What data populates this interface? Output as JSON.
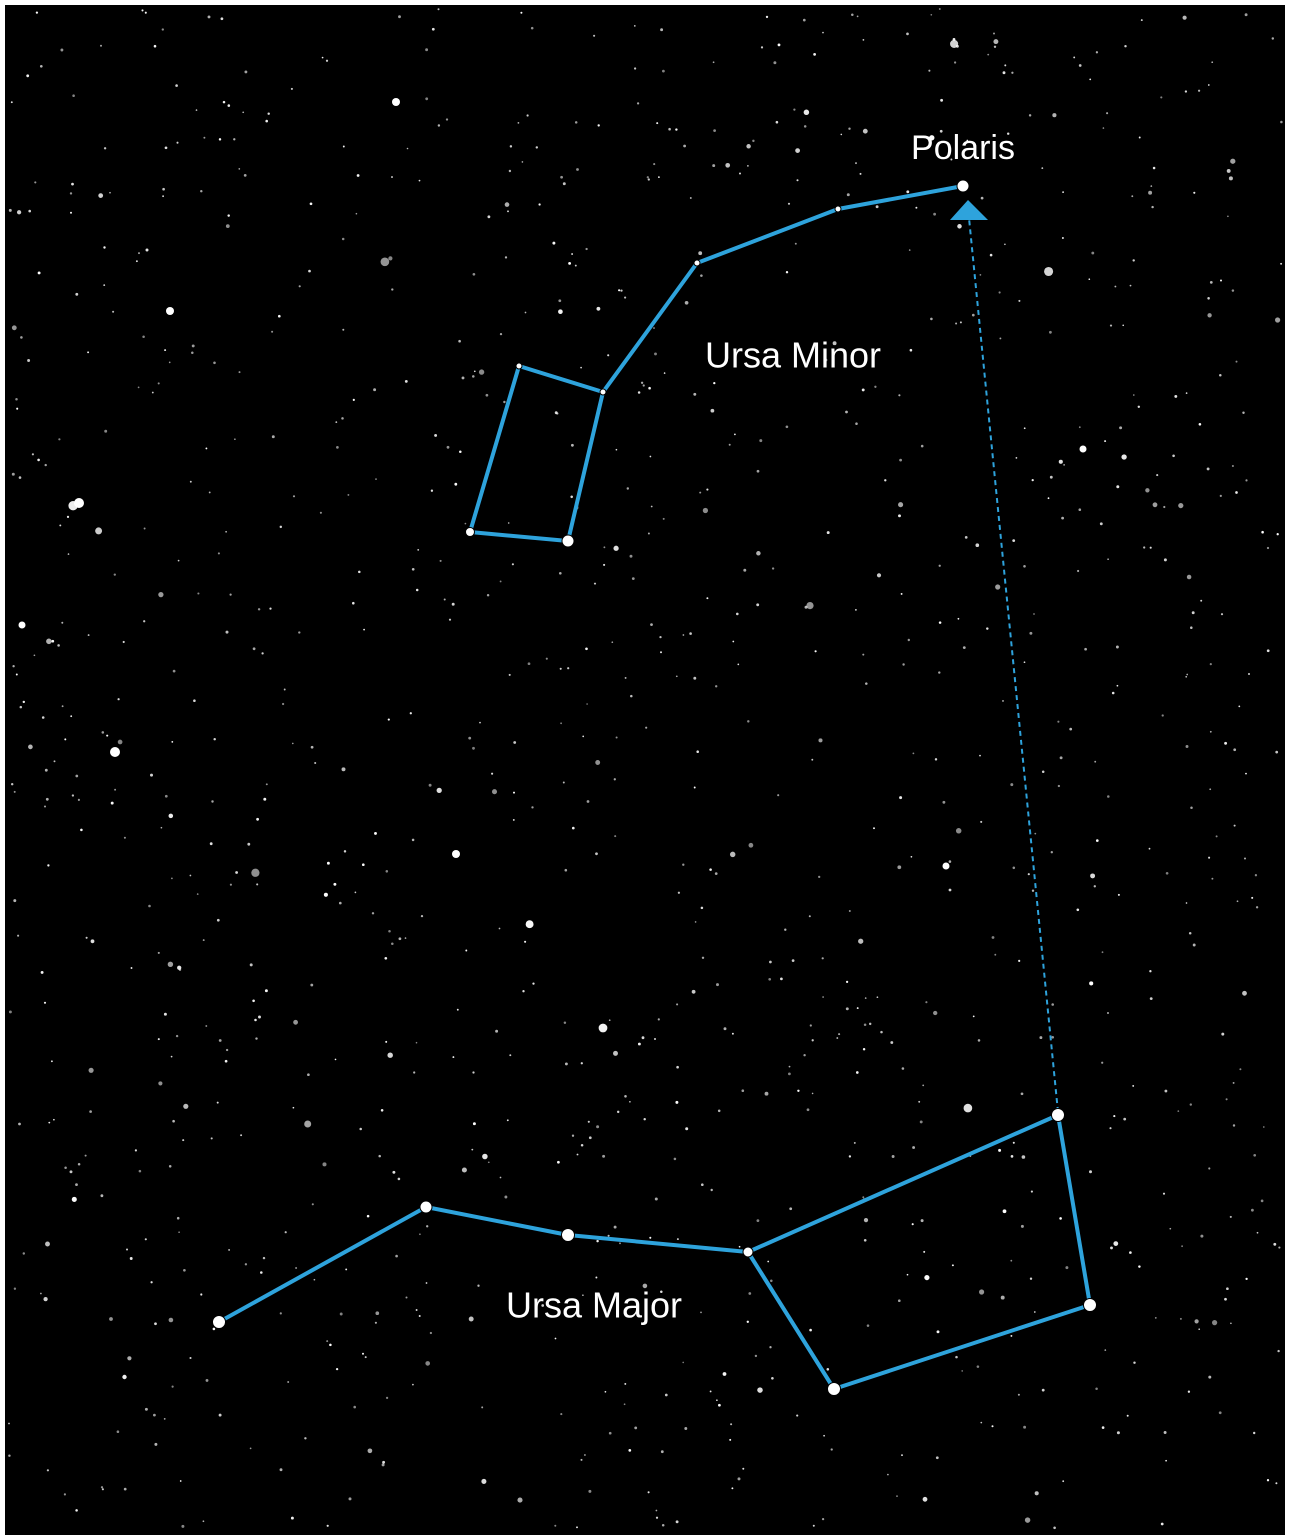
{
  "labels": {
    "polaris": "Polaris",
    "ursa_minor": "Ursa Minor",
    "ursa_major": "Ursa Major"
  }
}
